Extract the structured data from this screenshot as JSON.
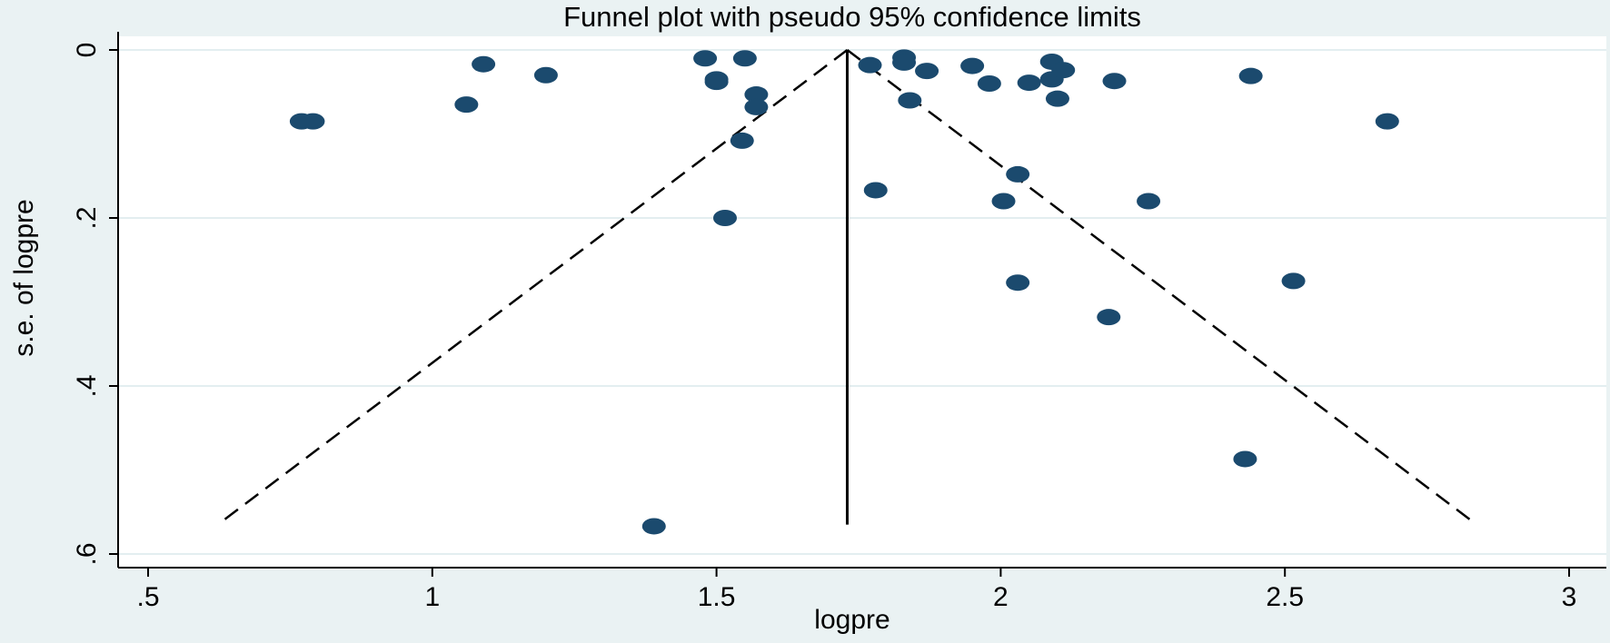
{
  "chart_data": {
    "type": "scatter",
    "title": "Funnel plot with pseudo 95% confidence limits",
    "xlabel": "logpre",
    "ylabel": "s.e. of logpre",
    "xlim": [
      0.45,
      3.05
    ],
    "ylim": [
      0,
      0.6
    ],
    "y_reversed": true,
    "x_ticks": [
      0.5,
      1,
      1.5,
      2,
      2.5,
      3
    ],
    "x_tick_labels": [
      ".5",
      "1",
      "1.5",
      "2",
      "2.5",
      "3"
    ],
    "y_ticks": [
      0,
      0.2,
      0.4,
      0.6
    ],
    "y_tick_labels": [
      "0",
      ".2",
      ".4",
      ".6"
    ],
    "grid": true,
    "legend": false,
    "colors": {
      "outer_background": "#eaf2f3",
      "plot_background": "#ffffff",
      "marker": "#1b4a6e",
      "grid": "#e3eef0",
      "lines": "#000000"
    },
    "pooled_estimate": 1.73,
    "max_se": 0.565,
    "ci_z": 1.96,
    "points": [
      {
        "x": 0.77,
        "y": 0.085
      },
      {
        "x": 0.79,
        "y": 0.085
      },
      {
        "x": 1.06,
        "y": 0.065
      },
      {
        "x": 1.09,
        "y": 0.017
      },
      {
        "x": 1.2,
        "y": 0.03
      },
      {
        "x": 1.48,
        "y": 0.01
      },
      {
        "x": 1.5,
        "y": 0.035
      },
      {
        "x": 1.5,
        "y": 0.038
      },
      {
        "x": 1.55,
        "y": 0.01
      },
      {
        "x": 1.57,
        "y": 0.053
      },
      {
        "x": 1.57,
        "y": 0.068
      },
      {
        "x": 1.545,
        "y": 0.108
      },
      {
        "x": 1.515,
        "y": 0.2
      },
      {
        "x": 1.39,
        "y": 0.567
      },
      {
        "x": 1.77,
        "y": 0.018
      },
      {
        "x": 1.83,
        "y": 0.009
      },
      {
        "x": 1.83,
        "y": 0.015
      },
      {
        "x": 1.87,
        "y": 0.025
      },
      {
        "x": 1.84,
        "y": 0.06
      },
      {
        "x": 1.78,
        "y": 0.167
      },
      {
        "x": 1.95,
        "y": 0.019
      },
      {
        "x": 1.98,
        "y": 0.04
      },
      {
        "x": 2.05,
        "y": 0.039
      },
      {
        "x": 2.09,
        "y": 0.035
      },
      {
        "x": 2.09,
        "y": 0.014
      },
      {
        "x": 2.11,
        "y": 0.024
      },
      {
        "x": 2.1,
        "y": 0.058
      },
      {
        "x": 2.2,
        "y": 0.037
      },
      {
        "x": 2.44,
        "y": 0.031
      },
      {
        "x": 2.03,
        "y": 0.148
      },
      {
        "x": 2.005,
        "y": 0.18
      },
      {
        "x": 2.26,
        "y": 0.18
      },
      {
        "x": 2.03,
        "y": 0.277
      },
      {
        "x": 2.515,
        "y": 0.275
      },
      {
        "x": 2.19,
        "y": 0.318
      },
      {
        "x": 2.43,
        "y": 0.487
      },
      {
        "x": 2.68,
        "y": 0.085
      }
    ]
  }
}
